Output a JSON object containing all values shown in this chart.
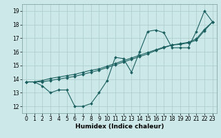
{
  "title": "",
  "xlabel": "Humidex (Indice chaleur)",
  "xlim": [
    -0.5,
    23.5
  ],
  "ylim": [
    11.5,
    19.5
  ],
  "xticks": [
    0,
    1,
    2,
    3,
    4,
    5,
    6,
    7,
    8,
    9,
    10,
    11,
    12,
    13,
    14,
    15,
    16,
    17,
    18,
    19,
    20,
    21,
    22,
    23
  ],
  "yticks": [
    12,
    13,
    14,
    15,
    16,
    17,
    18,
    19
  ],
  "bg_color": "#cce8e8",
  "grid_color": "#aacccc",
  "line_color": "#1a5f5f",
  "line1_y": [
    13.8,
    13.8,
    13.5,
    13.0,
    13.2,
    13.2,
    12.0,
    12.0,
    12.2,
    13.0,
    13.9,
    15.6,
    15.5,
    14.5,
    16.0,
    17.5,
    17.6,
    17.4,
    16.3,
    16.3,
    16.3,
    17.5,
    19.0,
    18.2
  ],
  "line2_y": [
    13.8,
    13.8,
    13.8,
    13.9,
    14.0,
    14.1,
    14.2,
    14.35,
    14.5,
    14.65,
    14.85,
    15.05,
    15.25,
    15.45,
    15.65,
    15.85,
    16.1,
    16.3,
    16.5,
    16.55,
    16.65,
    16.85,
    17.55,
    18.2
  ],
  "line3_y": [
    13.8,
    13.8,
    13.9,
    14.05,
    14.15,
    14.25,
    14.35,
    14.5,
    14.65,
    14.75,
    14.95,
    15.15,
    15.35,
    15.55,
    15.75,
    15.95,
    16.15,
    16.35,
    16.5,
    16.6,
    16.7,
    16.95,
    17.65,
    18.2
  ],
  "markersize": 2.0,
  "linewidth": 0.8,
  "font_size_label": 6.5,
  "font_size_tick": 5.5
}
